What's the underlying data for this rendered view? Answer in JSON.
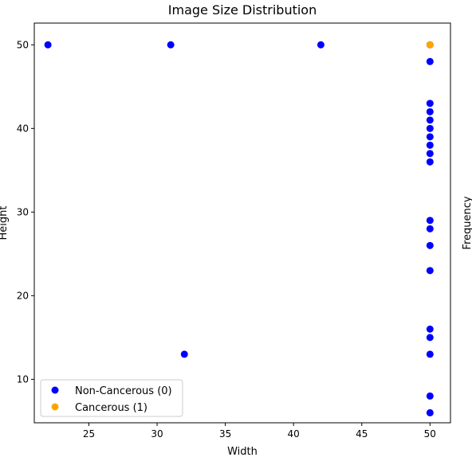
{
  "chart_data": {
    "type": "scatter",
    "title": "Image Size Distribution",
    "xlabel": "Width",
    "ylabel": "Height",
    "secondary_ylabel": "Frequency",
    "xlim": [
      21,
      51.5
    ],
    "ylim": [
      4.8,
      52.6
    ],
    "xticks": [
      25,
      30,
      35,
      40,
      45,
      50
    ],
    "yticks": [
      10,
      20,
      30,
      40,
      50
    ],
    "grid": false,
    "legend_position": "lower-left",
    "series": [
      {
        "name": "Non-Cancerous (0)",
        "color": "#0000ff",
        "points": [
          [
            22,
            50
          ],
          [
            31,
            50
          ],
          [
            42,
            50
          ],
          [
            32,
            13
          ],
          [
            50,
            50
          ],
          [
            50,
            48
          ],
          [
            50,
            43
          ],
          [
            50,
            42
          ],
          [
            50,
            41
          ],
          [
            50,
            40
          ],
          [
            50,
            39
          ],
          [
            50,
            38
          ],
          [
            50,
            37
          ],
          [
            50,
            36
          ],
          [
            50,
            29
          ],
          [
            50,
            28
          ],
          [
            50,
            26
          ],
          [
            50,
            23
          ],
          [
            50,
            16
          ],
          [
            50,
            15
          ],
          [
            50,
            13
          ],
          [
            50,
            8
          ],
          [
            50,
            6
          ]
        ]
      },
      {
        "name": "Cancerous (1)",
        "color": "#ffa500",
        "points": [
          [
            50,
            50
          ]
        ]
      }
    ]
  }
}
